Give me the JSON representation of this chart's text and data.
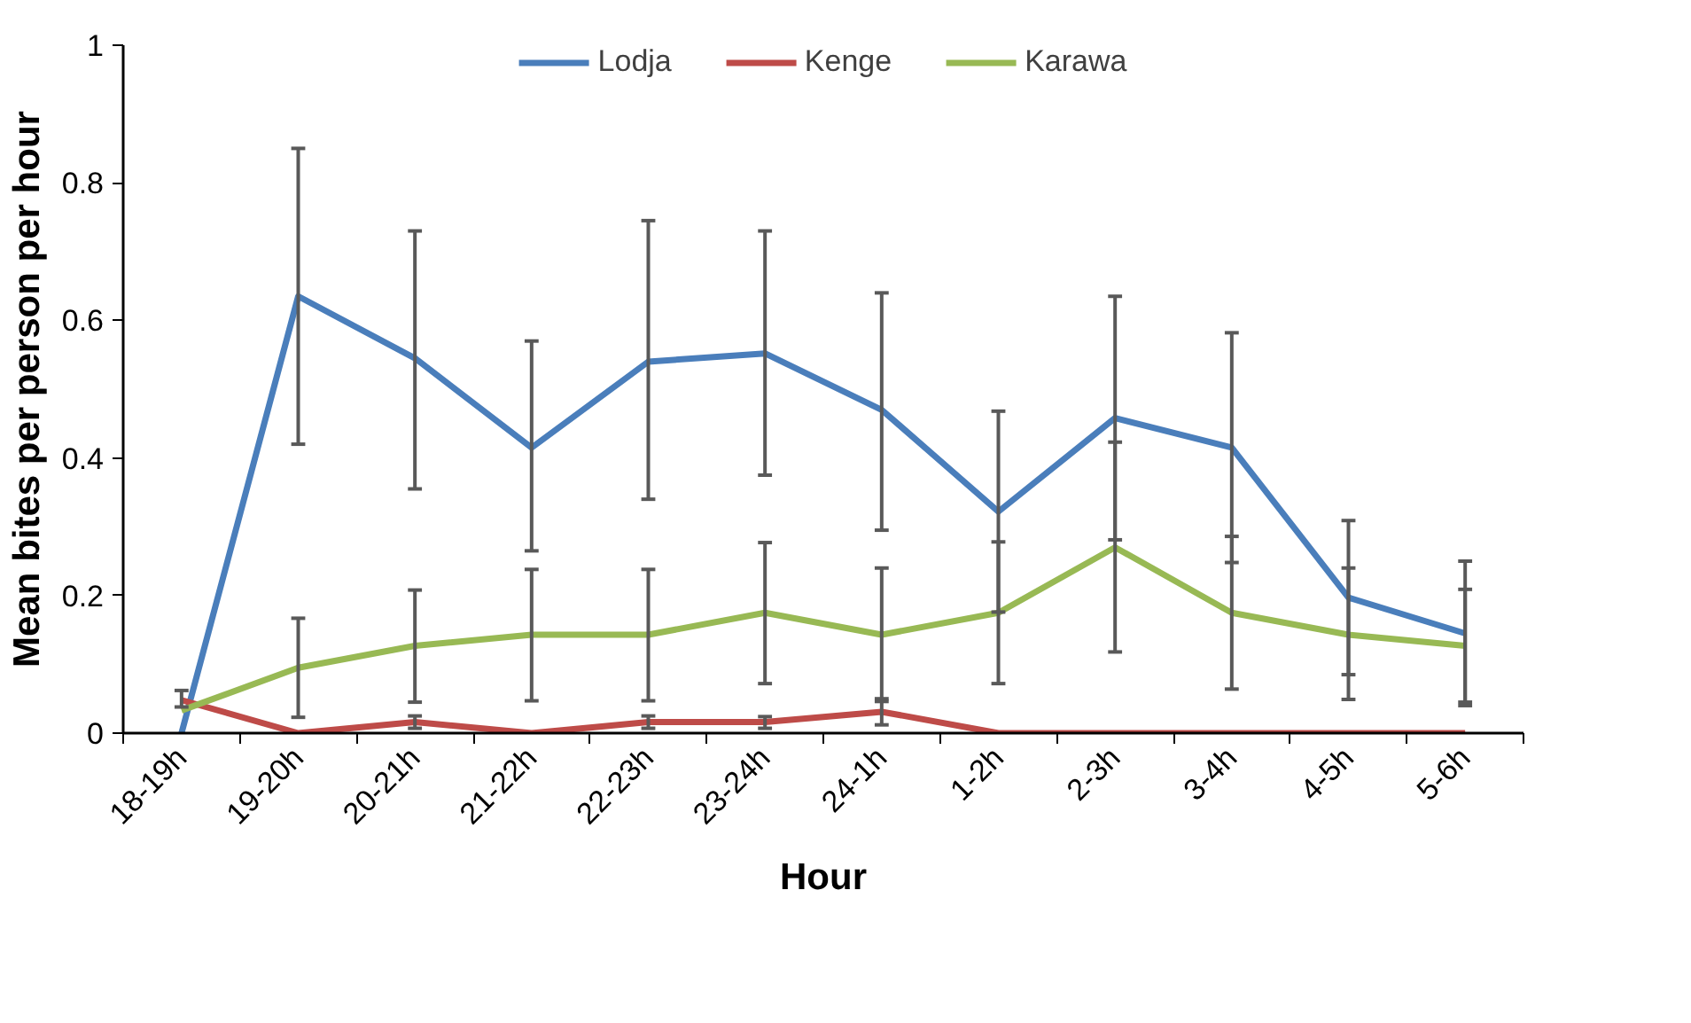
{
  "chart_data": {
    "type": "line",
    "xlabel": "Hour",
    "ylabel": "Mean bites per person per hour",
    "categories": [
      "18-19h",
      "19-20h",
      "20-21h",
      "21-22h",
      "22-23h",
      "23-24h",
      "24-1h",
      "1-2h",
      "2-3h",
      "3-4h",
      "4-5h",
      "5-6h"
    ],
    "ylim": [
      0,
      1
    ],
    "yticks": [
      0,
      0.2,
      0.4,
      0.6,
      0.8,
      1
    ],
    "grid": false,
    "legend": "top",
    "marker": "none",
    "line_style": "solid",
    "series": [
      {
        "name": "Lodja",
        "color": "#4a7ebb",
        "values": [
          0,
          0.635,
          0.545,
          0.415,
          0.54,
          0.552,
          0.47,
          0.322,
          0.458,
          0.415,
          0.197,
          0.145
        ],
        "errors": [
          null,
          [
            0.42,
            0.85
          ],
          [
            0.355,
            0.73
          ],
          [
            0.265,
            0.57
          ],
          [
            0.34,
            0.745
          ],
          [
            0.375,
            0.73
          ],
          [
            0.295,
            0.64
          ],
          [
            0.176,
            0.468
          ],
          [
            0.281,
            0.635
          ],
          [
            0.248,
            0.582
          ],
          [
            0.085,
            0.309
          ],
          [
            0.04,
            0.25
          ]
        ]
      },
      {
        "name": "Kenge",
        "color": "#be4b48",
        "values": [
          0.048,
          0,
          0.016,
          0,
          0.016,
          0.016,
          0.031,
          0,
          0,
          0,
          0,
          0
        ],
        "errors": [
          [
            0.038,
            0.062
          ],
          null,
          [
            0.007,
            0.025
          ],
          null,
          [
            0.007,
            0.025
          ],
          [
            0.007,
            0.024
          ],
          [
            0.012,
            0.05
          ],
          null,
          null,
          null,
          null,
          null
        ]
      },
      {
        "name": "Karawa",
        "color": "#98b954",
        "values": [
          0.033,
          0.095,
          0.127,
          0.143,
          0.143,
          0.175,
          0.143,
          0.175,
          0.27,
          0.175,
          0.143,
          0.127
        ],
        "errors": [
          null,
          [
            0.023,
            0.167
          ],
          [
            0.045,
            0.208
          ],
          [
            0.047,
            0.238
          ],
          [
            0.047,
            0.238
          ],
          [
            0.072,
            0.277
          ],
          [
            0.046,
            0.24
          ],
          [
            0.072,
            0.278
          ],
          [
            0.118,
            0.423
          ],
          [
            0.064,
            0.286
          ],
          [
            0.049,
            0.24
          ],
          [
            0.045,
            0.209
          ]
        ]
      }
    ]
  }
}
